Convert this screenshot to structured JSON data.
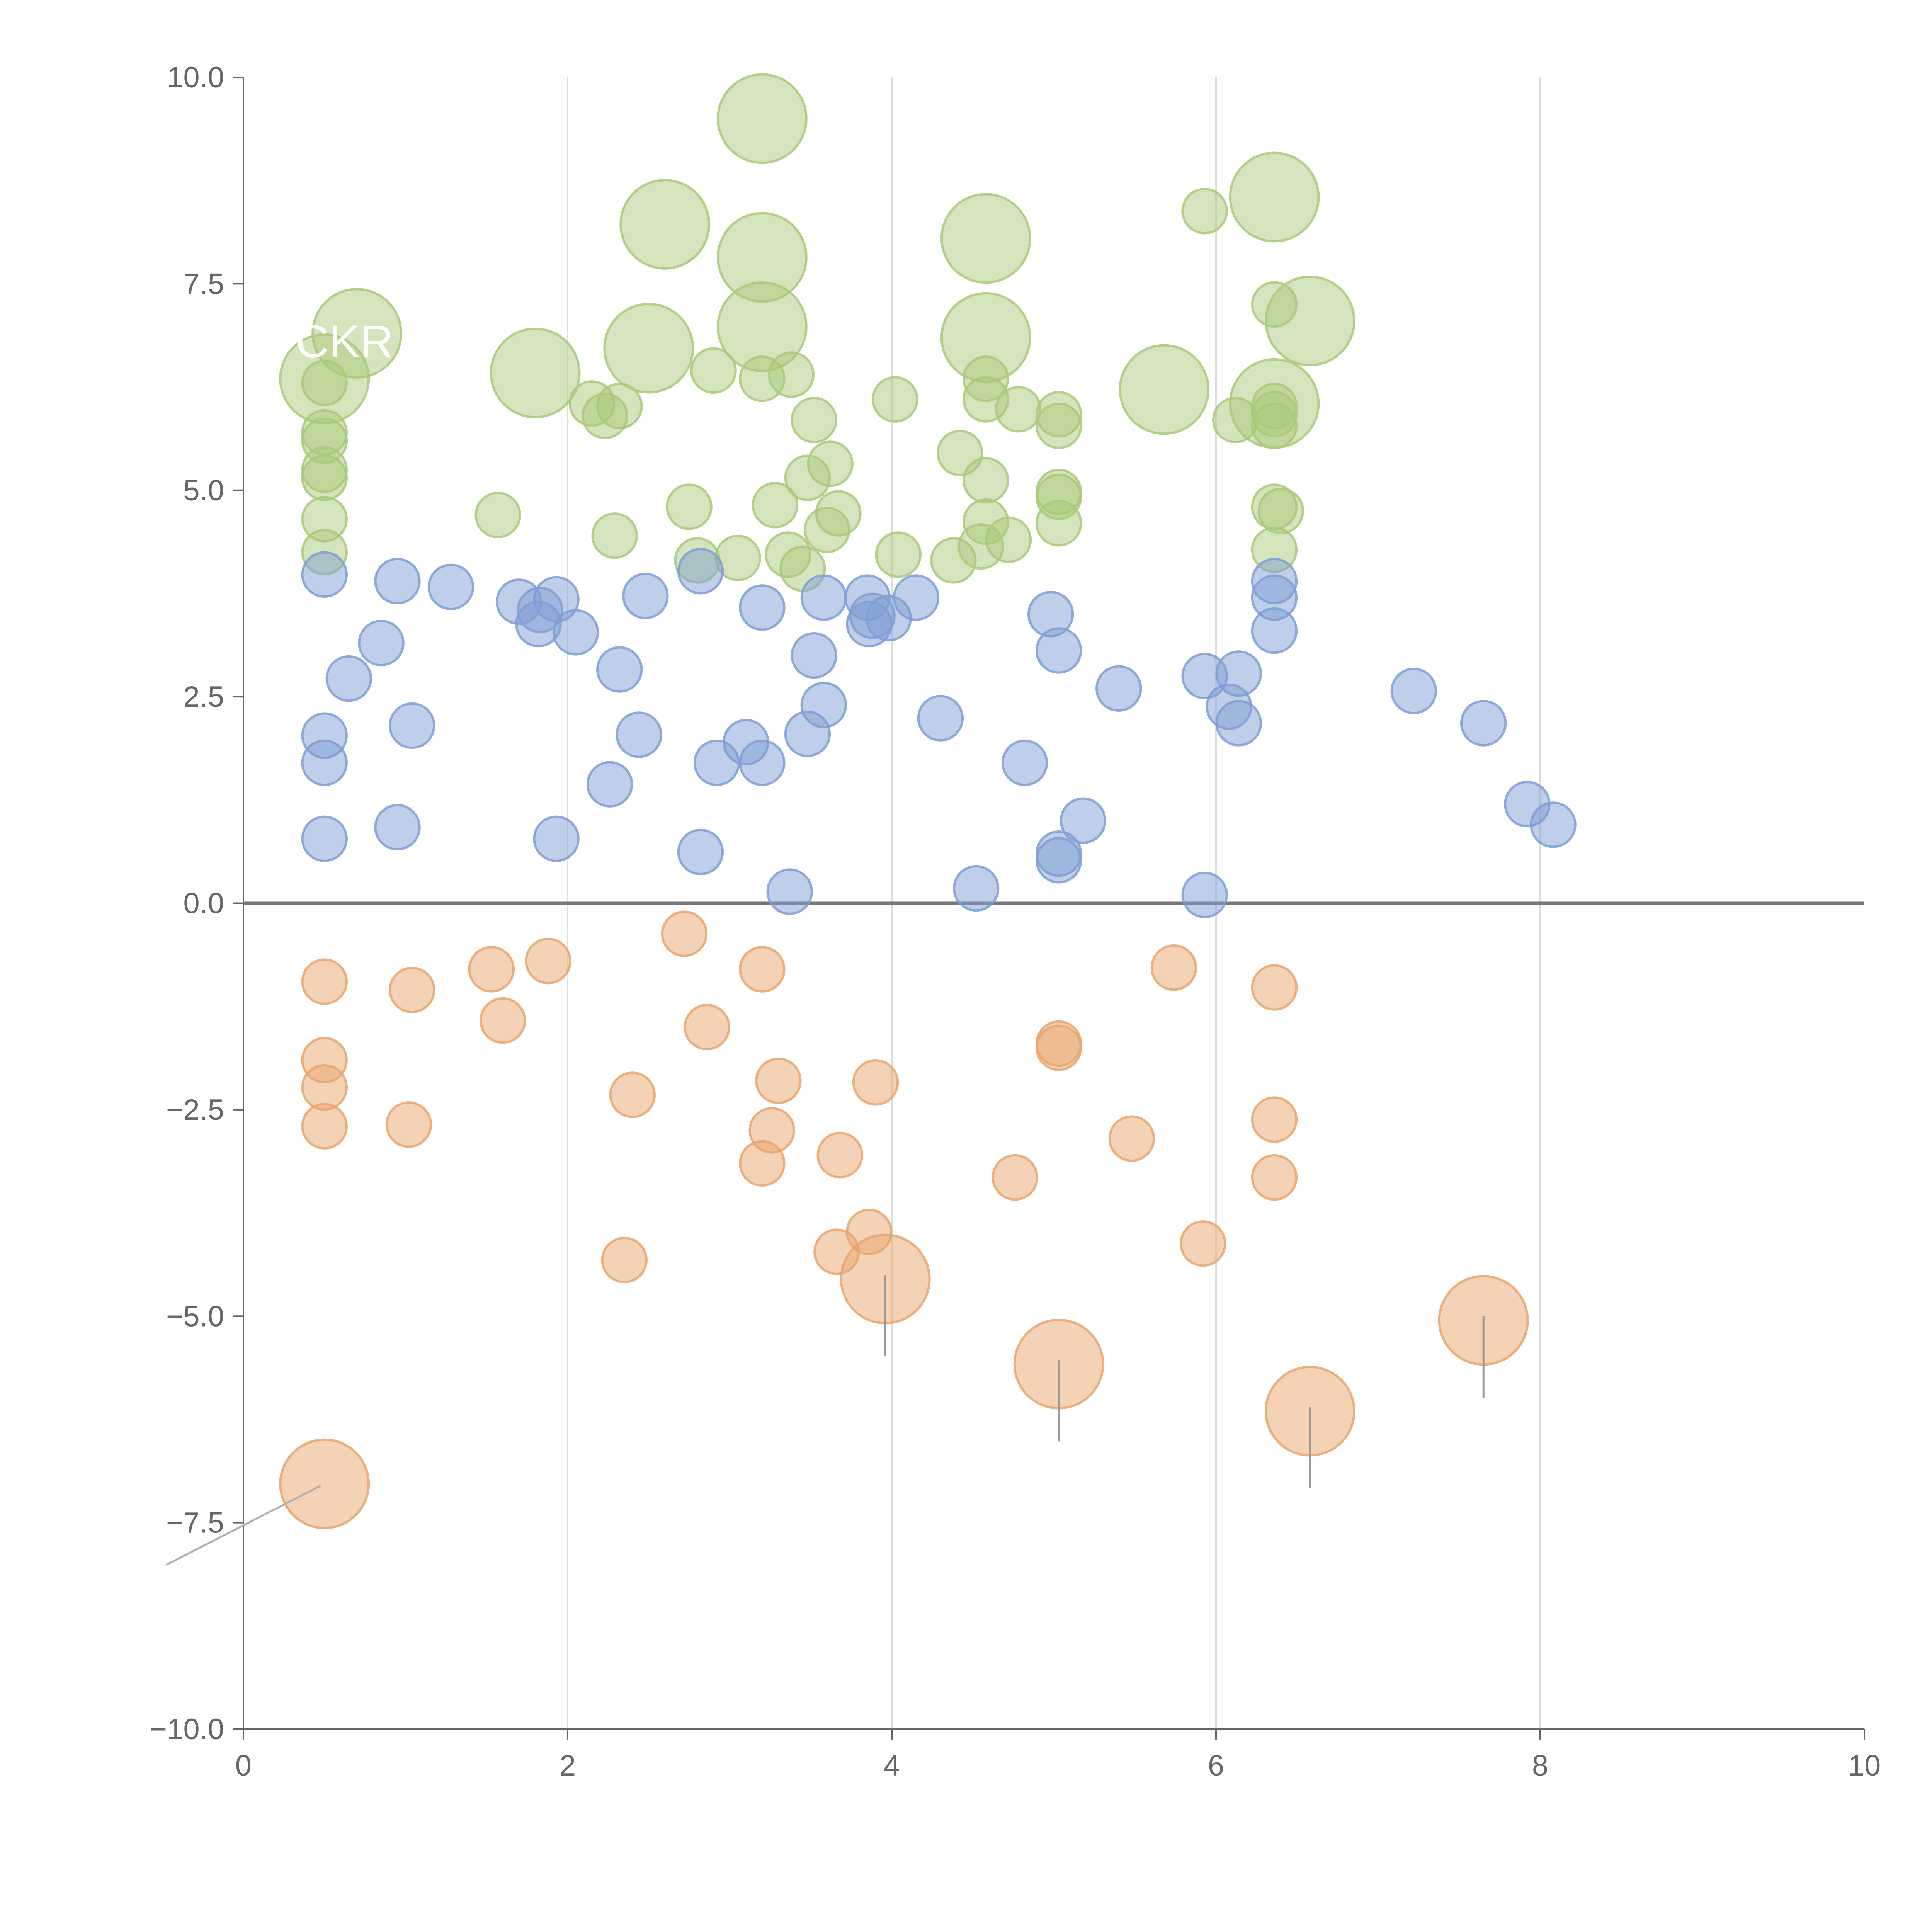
{
  "chart_data": {
    "type": "scatter",
    "subtype": "bubble",
    "title": "",
    "xlabel": "",
    "ylabel": "",
    "xlim": [
      0,
      10
    ],
    "ylim": [
      -10,
      10
    ],
    "x_ticks": [
      0,
      2,
      4,
      6,
      8,
      10
    ],
    "x_tick_labels": [
      "0",
      "2",
      "4",
      "6",
      "8",
      "10"
    ],
    "y_ticks": [
      -10,
      -7.5,
      -5,
      -2.5,
      0,
      2.5,
      5,
      7.5,
      10
    ],
    "y_tick_labels": [
      "−10.0",
      "−7.5",
      "−5.0",
      "−2.5",
      "0.0",
      "2.5",
      "5.0",
      "7.5",
      "10.0"
    ],
    "vertical_gridlines": [
      2,
      4,
      6,
      8
    ],
    "zero_line": 0,
    "partial_label_text": "CKR",
    "series": [
      {
        "name": "green",
        "color": "#a9c97a",
        "points": [
          {
            "x": 0.5,
            "y": 4.25,
            "r": 0.6
          },
          {
            "x": 0.5,
            "y": 4.65,
            "r": 0.6
          },
          {
            "x": 0.5,
            "y": 5.15,
            "r": 0.6
          },
          {
            "x": 0.5,
            "y": 5.25,
            "r": 0.6
          },
          {
            "x": 0.5,
            "y": 5.6,
            "r": 0.6
          },
          {
            "x": 0.5,
            "y": 5.7,
            "r": 0.6
          },
          {
            "x": 0.5,
            "y": 6.3,
            "r": 0.6
          },
          {
            "x": 0.5,
            "y": 6.35,
            "r": 1.2
          },
          {
            "x": 0.7,
            "y": 6.9,
            "r": 1.2
          },
          {
            "x": 1.57,
            "y": 4.7,
            "r": 0.6
          },
          {
            "x": 1.8,
            "y": 6.42,
            "r": 1.2
          },
          {
            "x": 2.15,
            "y": 6.05,
            "r": 0.6
          },
          {
            "x": 2.23,
            "y": 5.9,
            "r": 0.6
          },
          {
            "x": 2.29,
            "y": 4.45,
            "r": 0.6
          },
          {
            "x": 2.32,
            "y": 6.02,
            "r": 0.6
          },
          {
            "x": 2.5,
            "y": 6.72,
            "r": 1.2
          },
          {
            "x": 2.6,
            "y": 8.22,
            "r": 1.2
          },
          {
            "x": 2.75,
            "y": 4.8,
            "r": 0.6
          },
          {
            "x": 2.8,
            "y": 4.15,
            "r": 0.6
          },
          {
            "x": 2.9,
            "y": 6.45,
            "r": 0.6
          },
          {
            "x": 3.05,
            "y": 4.18,
            "r": 0.6
          },
          {
            "x": 3.2,
            "y": 6.35,
            "r": 0.6
          },
          {
            "x": 3.2,
            "y": 6.98,
            "r": 1.2
          },
          {
            "x": 3.2,
            "y": 7.82,
            "r": 1.2
          },
          {
            "x": 3.2,
            "y": 9.5,
            "r": 1.2
          },
          {
            "x": 3.28,
            "y": 4.82,
            "r": 0.6
          },
          {
            "x": 3.36,
            "y": 4.22,
            "r": 0.6
          },
          {
            "x": 3.38,
            "y": 6.4,
            "r": 0.6
          },
          {
            "x": 3.45,
            "y": 4.05,
            "r": 0.6
          },
          {
            "x": 3.48,
            "y": 5.15,
            "r": 0.6
          },
          {
            "x": 3.52,
            "y": 5.85,
            "r": 0.6
          },
          {
            "x": 3.6,
            "y": 4.52,
            "r": 0.6
          },
          {
            "x": 3.62,
            "y": 5.32,
            "r": 0.6
          },
          {
            "x": 3.67,
            "y": 4.72,
            "r": 0.6
          },
          {
            "x": 4.02,
            "y": 6.1,
            "r": 0.6
          },
          {
            "x": 4.04,
            "y": 4.22,
            "r": 0.6
          },
          {
            "x": 4.38,
            "y": 4.15,
            "r": 0.6
          },
          {
            "x": 4.42,
            "y": 5.45,
            "r": 0.6
          },
          {
            "x": 4.55,
            "y": 4.32,
            "r": 0.6
          },
          {
            "x": 4.58,
            "y": 4.62,
            "r": 0.6
          },
          {
            "x": 4.58,
            "y": 5.12,
            "r": 0.6
          },
          {
            "x": 4.58,
            "y": 6.1,
            "r": 0.6
          },
          {
            "x": 4.58,
            "y": 6.35,
            "r": 0.6
          },
          {
            "x": 4.58,
            "y": 6.85,
            "r": 1.2
          },
          {
            "x": 4.58,
            "y": 8.05,
            "r": 1.2
          },
          {
            "x": 4.72,
            "y": 4.4,
            "r": 0.6
          },
          {
            "x": 4.78,
            "y": 5.98,
            "r": 0.6
          },
          {
            "x": 5.03,
            "y": 4.6,
            "r": 0.6
          },
          {
            "x": 5.03,
            "y": 4.92,
            "r": 0.6
          },
          {
            "x": 5.03,
            "y": 4.98,
            "r": 0.6
          },
          {
            "x": 5.03,
            "y": 5.78,
            "r": 0.6
          },
          {
            "x": 5.03,
            "y": 5.92,
            "r": 0.6
          },
          {
            "x": 5.68,
            "y": 6.22,
            "r": 1.2
          },
          {
            "x": 5.93,
            "y": 8.38,
            "r": 0.6
          },
          {
            "x": 6.12,
            "y": 5.85,
            "r": 0.6
          },
          {
            "x": 6.36,
            "y": 4.28,
            "r": 0.6
          },
          {
            "x": 6.36,
            "y": 4.8,
            "r": 0.6
          },
          {
            "x": 6.36,
            "y": 5.78,
            "r": 0.6
          },
          {
            "x": 6.36,
            "y": 5.92,
            "r": 0.6
          },
          {
            "x": 6.36,
            "y": 6.02,
            "r": 0.6
          },
          {
            "x": 6.36,
            "y": 6.05,
            "r": 1.2
          },
          {
            "x": 6.36,
            "y": 7.25,
            "r": 0.6
          },
          {
            "x": 6.36,
            "y": 8.55,
            "r": 1.2
          },
          {
            "x": 6.4,
            "y": 4.75,
            "r": 0.6
          },
          {
            "x": 6.58,
            "y": 7.05,
            "r": 1.2
          }
        ]
      },
      {
        "name": "blue",
        "color": "#7f9ed4",
        "points": [
          {
            "x": 0.5,
            "y": 0.78,
            "r": 0.6
          },
          {
            "x": 0.5,
            "y": 1.7,
            "r": 0.6
          },
          {
            "x": 0.5,
            "y": 2.03,
            "r": 0.6
          },
          {
            "x": 0.5,
            "y": 3.98,
            "r": 0.6
          },
          {
            "x": 0.65,
            "y": 2.72,
            "r": 0.6
          },
          {
            "x": 0.85,
            "y": 3.15,
            "r": 0.6
          },
          {
            "x": 0.95,
            "y": 0.92,
            "r": 0.6
          },
          {
            "x": 0.95,
            "y": 3.9,
            "r": 0.6
          },
          {
            "x": 1.04,
            "y": 2.15,
            "r": 0.6
          },
          {
            "x": 1.28,
            "y": 3.83,
            "r": 0.6
          },
          {
            "x": 1.7,
            "y": 3.65,
            "r": 0.6
          },
          {
            "x": 1.82,
            "y": 3.38,
            "r": 0.6
          },
          {
            "x": 1.83,
            "y": 3.55,
            "r": 0.6
          },
          {
            "x": 1.93,
            "y": 0.78,
            "r": 0.6
          },
          {
            "x": 1.93,
            "y": 3.68,
            "r": 0.6
          },
          {
            "x": 2.05,
            "y": 3.28,
            "r": 0.6
          },
          {
            "x": 2.26,
            "y": 1.44,
            "r": 0.6
          },
          {
            "x": 2.32,
            "y": 2.83,
            "r": 0.6
          },
          {
            "x": 2.44,
            "y": 2.04,
            "r": 0.6
          },
          {
            "x": 2.48,
            "y": 3.72,
            "r": 0.6
          },
          {
            "x": 2.82,
            "y": 0.62,
            "r": 0.6
          },
          {
            "x": 2.82,
            "y": 4.02,
            "r": 0.6
          },
          {
            "x": 2.92,
            "y": 1.7,
            "r": 0.6
          },
          {
            "x": 3.1,
            "y": 1.95,
            "r": 0.6
          },
          {
            "x": 3.2,
            "y": 1.7,
            "r": 0.6
          },
          {
            "x": 3.2,
            "y": 3.58,
            "r": 0.6
          },
          {
            "x": 3.37,
            "y": 0.14,
            "r": 0.6
          },
          {
            "x": 3.48,
            "y": 2.05,
            "r": 0.6
          },
          {
            "x": 3.52,
            "y": 3.0,
            "r": 0.6
          },
          {
            "x": 3.58,
            "y": 2.4,
            "r": 0.6
          },
          {
            "x": 3.58,
            "y": 3.7,
            "r": 0.6
          },
          {
            "x": 3.85,
            "y": 3.7,
            "r": 0.6
          },
          {
            "x": 3.86,
            "y": 3.38,
            "r": 0.6
          },
          {
            "x": 3.88,
            "y": 3.48,
            "r": 0.6
          },
          {
            "x": 3.98,
            "y": 3.45,
            "r": 0.6
          },
          {
            "x": 4.15,
            "y": 3.7,
            "r": 0.6
          },
          {
            "x": 4.3,
            "y": 2.24,
            "r": 0.6
          },
          {
            "x": 4.52,
            "y": 0.18,
            "r": 0.6
          },
          {
            "x": 4.82,
            "y": 1.7,
            "r": 0.6
          },
          {
            "x": 4.98,
            "y": 3.5,
            "r": 0.6
          },
          {
            "x": 5.03,
            "y": 0.52,
            "r": 0.6
          },
          {
            "x": 5.03,
            "y": 0.6,
            "r": 0.6
          },
          {
            "x": 5.03,
            "y": 3.06,
            "r": 0.6
          },
          {
            "x": 5.18,
            "y": 1.0,
            "r": 0.6
          },
          {
            "x": 5.4,
            "y": 2.6,
            "r": 0.6
          },
          {
            "x": 5.93,
            "y": 0.1,
            "r": 0.6
          },
          {
            "x": 5.93,
            "y": 2.75,
            "r": 0.6
          },
          {
            "x": 6.08,
            "y": 2.38,
            "r": 0.6
          },
          {
            "x": 6.14,
            "y": 2.18,
            "r": 0.6
          },
          {
            "x": 6.14,
            "y": 2.78,
            "r": 0.6
          },
          {
            "x": 6.36,
            "y": 3.3,
            "r": 0.6
          },
          {
            "x": 6.36,
            "y": 3.7,
            "r": 0.6
          },
          {
            "x": 6.36,
            "y": 3.9,
            "r": 0.6
          },
          {
            "x": 7.22,
            "y": 2.57,
            "r": 0.6
          },
          {
            "x": 7.65,
            "y": 2.18,
            "r": 0.6
          },
          {
            "x": 7.92,
            "y": 1.2,
            "r": 0.6
          },
          {
            "x": 8.08,
            "y": 0.95,
            "r": 0.6
          }
        ]
      },
      {
        "name": "orange",
        "color": "#e8a56e",
        "points": [
          {
            "x": 0.5,
            "y": -0.95,
            "r": 0.6
          },
          {
            "x": 0.5,
            "y": -1.9,
            "r": 0.6
          },
          {
            "x": 0.5,
            "y": -2.23,
            "r": 0.6
          },
          {
            "x": 0.5,
            "y": -2.7,
            "r": 0.6
          },
          {
            "x": 0.5,
            "y": -7.03,
            "r": 1.2
          },
          {
            "x": 1.02,
            "y": -2.68,
            "r": 0.6
          },
          {
            "x": 1.04,
            "y": -1.05,
            "r": 0.6
          },
          {
            "x": 1.53,
            "y": -0.8,
            "r": 0.6
          },
          {
            "x": 1.6,
            "y": -1.42,
            "r": 0.6
          },
          {
            "x": 1.88,
            "y": -0.7,
            "r": 0.6
          },
          {
            "x": 2.35,
            "y": -4.32,
            "r": 0.6
          },
          {
            "x": 2.4,
            "y": -2.32,
            "r": 0.6
          },
          {
            "x": 2.72,
            "y": -0.37,
            "r": 0.6
          },
          {
            "x": 2.86,
            "y": -1.5,
            "r": 0.6
          },
          {
            "x": 3.2,
            "y": -0.8,
            "r": 0.6
          },
          {
            "x": 3.2,
            "y": -3.15,
            "r": 0.6
          },
          {
            "x": 3.26,
            "y": -2.75,
            "r": 0.6
          },
          {
            "x": 3.3,
            "y": -2.15,
            "r": 0.6
          },
          {
            "x": 3.66,
            "y": -4.22,
            "r": 0.6
          },
          {
            "x": 3.68,
            "y": -3.05,
            "r": 0.6
          },
          {
            "x": 3.86,
            "y": -3.98,
            "r": 0.6
          },
          {
            "x": 3.9,
            "y": -2.17,
            "r": 0.6
          },
          {
            "x": 3.96,
            "y": -4.55,
            "r": 1.2
          },
          {
            "x": 4.76,
            "y": -3.32,
            "r": 0.6
          },
          {
            "x": 5.03,
            "y": -1.7,
            "r": 0.6
          },
          {
            "x": 5.03,
            "y": -1.75,
            "r": 0.6
          },
          {
            "x": 5.03,
            "y": -5.58,
            "r": 1.2
          },
          {
            "x": 5.48,
            "y": -2.85,
            "r": 0.6
          },
          {
            "x": 5.74,
            "y": -0.78,
            "r": 0.6
          },
          {
            "x": 5.92,
            "y": -4.12,
            "r": 0.6
          },
          {
            "x": 6.36,
            "y": -1.02,
            "r": 0.6
          },
          {
            "x": 6.36,
            "y": -2.62,
            "r": 0.6
          },
          {
            "x": 6.36,
            "y": -3.32,
            "r": 0.6
          },
          {
            "x": 6.58,
            "y": -6.15,
            "r": 1.2
          },
          {
            "x": 7.65,
            "y": -5.05,
            "r": 1.2
          }
        ]
      }
    ]
  }
}
